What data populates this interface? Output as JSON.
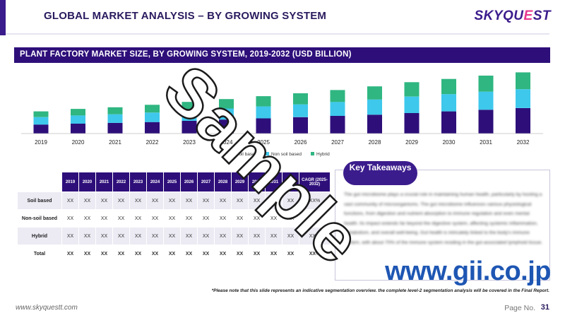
{
  "header": {
    "title": "GLOBAL MARKET ANALYSIS – BY GROWING SYSTEM",
    "logo_main": "SKYQU",
    "logo_accent": "E",
    "logo_end": "ST"
  },
  "chart_panel": {
    "header": "PLANT FACTORY MARKET SIZE,  BY GROWING SYSTEM, 2019-2032 (USD BILLION)"
  },
  "chart_data": {
    "type": "bar",
    "stacked": true,
    "title": "PLANT FACTORY MARKET SIZE,  BY GROWING SYSTEM, 2019-2032 (USD BILLION)",
    "categories": [
      "2019",
      "2020",
      "2021",
      "2022",
      "2023",
      "2024",
      "2025",
      "2026",
      "2027",
      "2028",
      "2029",
      "2030",
      "2031",
      "2032"
    ],
    "series": [
      {
        "name": "Soil based",
        "color": "#2e0f7a",
        "values": [
          11,
          12,
          13,
          14,
          15.5,
          17,
          18.5,
          20,
          21.5,
          23,
          25,
          27,
          29,
          31
        ]
      },
      {
        "name": "Non soil based",
        "color": "#3ec8ec",
        "values": [
          9,
          10,
          10.5,
          11.5,
          12.5,
          13.5,
          14.5,
          15.5,
          17,
          18.5,
          20,
          21,
          22,
          23
        ]
      },
      {
        "name": "Hybrid",
        "color": "#2fb681",
        "values": [
          7,
          8,
          8.5,
          9.5,
          10.5,
          11.5,
          12.5,
          13.5,
          14.5,
          16,
          17.5,
          18.5,
          19.5,
          20.5
        ]
      }
    ],
    "xlabel": "",
    "ylabel": "",
    "ylim": [
      0,
      80
    ],
    "grid": false,
    "legend": "bottom-right"
  },
  "legend": {
    "soil": "Soil based",
    "nonsoil": "Non soil based",
    "hybrid": "Hybrid"
  },
  "table": {
    "years": [
      "2019",
      "2020",
      "2021",
      "2022",
      "2023",
      "2024",
      "2025",
      "2026",
      "2027",
      "2028",
      "2029",
      "2030",
      "2031",
      "2032"
    ],
    "cagr_header": "CAGR (2025-2032)",
    "cell_value": "XX",
    "cagr_value": "XX%",
    "rows": [
      {
        "label": "Soil based"
      },
      {
        "label": "Non-soil based"
      },
      {
        "label": "Hybrid"
      },
      {
        "label": "Total"
      }
    ]
  },
  "takeaways": {
    "title": "Key Takeaways",
    "text": "The gut microbiome plays a crucial role in maintaining human health, particularly by hosting a vast community of microorganisms. The gut microbiome influences various physiological functions, from digestion and nutrient absorption to immune regulation and even mental health. Its impact extends far beyond the digestive system, affecting systemic inflammation, metabolism, and overall well-being. Gut health is intricately linked to the body's immune system, with about 70% of the immune system residing in the gut-associated lymphoid tissue."
  },
  "note": "*Please note that this slide represents an indicative segmentation overview. the complete level-2 segmentation analysis will be covered in the Final Report.",
  "footer": {
    "url": "www.skyquestt.com",
    "page_label": "Page No.",
    "page_number": "31"
  },
  "watermarks": {
    "sample": "Sample",
    "gii": "www.gii.co.jp"
  }
}
